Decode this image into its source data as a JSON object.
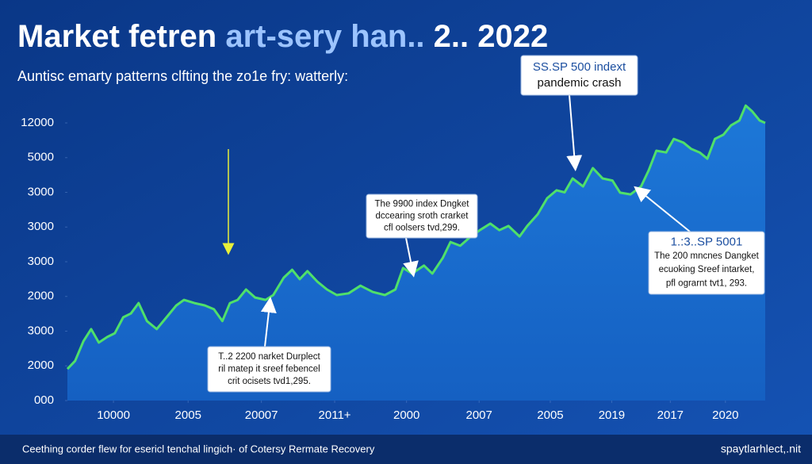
{
  "chart_data": {
    "type": "line",
    "title": [
      "Market fetren",
      "art-sery han..",
      "2..  2022"
    ],
    "subtitle": "Auntisc emarty patterns clfting the zo1e fry: watterly:",
    "footer": "Ceething corder flew for esericl tenchal lingich· of Cotersy Rermate Recovery",
    "watermark": "spaytlarhlect,.nit",
    "xlim": [
      0,
      100
    ],
    "ylim": [
      0,
      8.9
    ],
    "xticks": [
      {
        "value": 6.6,
        "label": "10000"
      },
      {
        "value": 17.3,
        "label": "2005"
      },
      {
        "value": 27.8,
        "label": "20007"
      },
      {
        "value": 38.3,
        "label": "2011+"
      },
      {
        "value": 48.6,
        "label": "2000"
      },
      {
        "value": 59,
        "label": "2007"
      },
      {
        "value": 69.2,
        "label": "2005"
      },
      {
        "value": 78,
        "label": "2019"
      },
      {
        "value": 86.4,
        "label": "2017"
      },
      {
        "value": 94.3,
        "label": "2020"
      }
    ],
    "yticks": [
      {
        "value": 0,
        "label": "000"
      },
      {
        "value": 1,
        "label": "2000"
      },
      {
        "value": 2,
        "label": "3000"
      },
      {
        "value": 3,
        "label": "2000"
      },
      {
        "value": 4,
        "label": "3000"
      },
      {
        "value": 5,
        "label": "3000"
      },
      {
        "value": 6,
        "label": "3000"
      },
      {
        "value": 7,
        "label": "5000"
      },
      {
        "value": 8,
        "label": "12000"
      }
    ],
    "grid": false,
    "series": [
      {
        "color": "#4fe06a",
        "x": [
          0,
          1.1,
          2.3,
          3.4,
          4.5,
          5.7,
          6.8,
          8,
          9.1,
          10.2,
          11.4,
          12.8,
          14.2,
          15.6,
          16.7,
          18.2,
          19.7,
          21,
          22.2,
          23.3,
          24.4,
          25.6,
          26.9,
          28.4,
          29.5,
          31,
          32.2,
          33.3,
          34.4,
          35.8,
          37.2,
          38.6,
          40.3,
          42,
          43.75,
          45.5,
          47,
          48.1,
          49.4,
          51.1,
          52.3,
          53.8,
          54.9,
          56.3,
          57.6,
          59.1,
          60.6,
          61.9,
          63.2,
          64.8,
          65.9,
          67.4,
          68.75,
          70.1,
          71.25,
          72.4,
          73.9,
          75.3,
          76.7,
          78.1,
          79.2,
          80.7,
          82.2,
          83.3,
          84.4,
          85.8,
          86.9,
          88.3,
          89.4,
          90.6,
          91.7,
          92.8,
          94,
          95.1,
          96.3,
          97.2,
          98.1,
          99.2,
          100
        ],
        "values": [
          0.91,
          1.14,
          1.71,
          2.06,
          1.67,
          1.83,
          1.94,
          2.4,
          2.51,
          2.81,
          2.29,
          2.06,
          2.4,
          2.74,
          2.9,
          2.81,
          2.74,
          2.63,
          2.29,
          2.81,
          2.9,
          3.2,
          2.97,
          2.9,
          3.04,
          3.54,
          3.77,
          3.5,
          3.73,
          3.43,
          3.2,
          3.04,
          3.09,
          3.31,
          3.13,
          3.04,
          3.2,
          3.82,
          3.66,
          3.89,
          3.66,
          4.11,
          4.57,
          4.46,
          4.69,
          4.91,
          5.1,
          4.91,
          5.03,
          4.73,
          5.03,
          5.37,
          5.83,
          6.06,
          6.0,
          6.4,
          6.17,
          6.7,
          6.4,
          6.34,
          5.99,
          5.94,
          6.17,
          6.63,
          7.2,
          7.15,
          7.54,
          7.43,
          7.25,
          7.15,
          6.97,
          7.54,
          7.66,
          7.93,
          8.07,
          8.5,
          8.34,
          8.07,
          8.0
        ]
      }
    ],
    "annotations": [
      {
        "lines": [
          "SS.SP 500 indext",
          "pandemic crash"
        ]
      },
      {
        "lines": [
          "The 9900 index Dngket",
          "dccearing sroth crarket",
          "cfl oolsers tvd,299."
        ]
      },
      {
        "lines": [
          "1.:3..SP 5001",
          "The 200 mncnes Dangket",
          "ecuoking Sreef intarket,",
          "pfl ograrnt tvt1, 293."
        ]
      },
      {
        "lines": [
          "T..2 2200 narket Durplect",
          "ril matep it sreef febencel",
          "crit ocisets tvd1,295."
        ]
      }
    ]
  }
}
